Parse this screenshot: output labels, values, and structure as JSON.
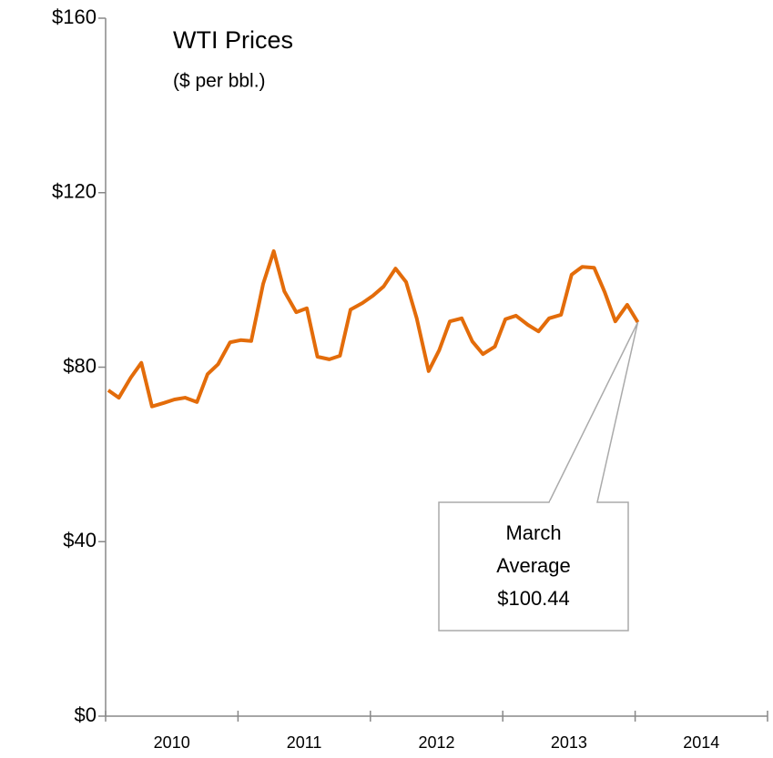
{
  "chart_data": {
    "type": "line",
    "title": "WTI Prices",
    "subtitle": "($ per bbl.)",
    "categories": [
      "2010",
      "2011",
      "2012",
      "2013",
      "2014"
    ],
    "x": [
      2010.02,
      2010.1,
      2010.19,
      2010.27,
      2010.35,
      2010.44,
      2010.52,
      2010.6,
      2010.69,
      2010.77,
      2010.85,
      2010.94,
      2011.02,
      2011.1,
      2011.19,
      2011.27,
      2011.35,
      2011.44,
      2011.52,
      2011.6,
      2011.69,
      2011.77,
      2011.85,
      2011.94,
      2012.02,
      2012.1,
      2012.19,
      2012.27,
      2012.35,
      2012.44,
      2012.52,
      2012.6,
      2012.69,
      2012.77,
      2012.85,
      2012.94,
      2013.02,
      2013.1,
      2013.19,
      2013.27,
      2013.35,
      2013.44,
      2013.52,
      2013.6,
      2013.69,
      2013.77,
      2013.85,
      2013.94,
      2014.02
    ],
    "series": [
      {
        "name": "WTI",
        "color": "#e36c0a",
        "values": [
          74.7,
          73,
          77.6,
          81,
          71,
          71.8,
          72.6,
          73,
          72,
          78.4,
          80.7,
          85.7,
          86.2,
          86,
          99.1,
          106.6,
          97.4,
          92.6,
          93.5,
          82.4,
          81.8,
          82.6,
          93.2,
          94.7,
          96.4,
          98.5,
          102.6,
          99.5,
          91.2,
          79.1,
          83.9,
          90.5,
          91.2,
          85.9,
          83,
          84.7,
          91,
          91.8,
          89.7,
          88.2,
          91.2,
          92,
          101.2,
          103,
          102.8,
          97.2,
          90.5,
          94.3,
          90.3
        ]
      }
    ],
    "xlim": [
      2010,
      2015
    ],
    "xticks": [
      2010,
      2011,
      2012,
      2013,
      2014,
      2015
    ],
    "ylim": [
      0,
      160
    ],
    "yticks": [
      {
        "value": 0,
        "label": "$0"
      },
      {
        "value": 40,
        "label": "$40"
      },
      {
        "value": 80,
        "label": "$80"
      },
      {
        "value": 120,
        "label": "$120"
      },
      {
        "value": 160,
        "label": "$160"
      }
    ],
    "annotation": [
      "March",
      "Average",
      "$100.44"
    ],
    "grid": false
  }
}
